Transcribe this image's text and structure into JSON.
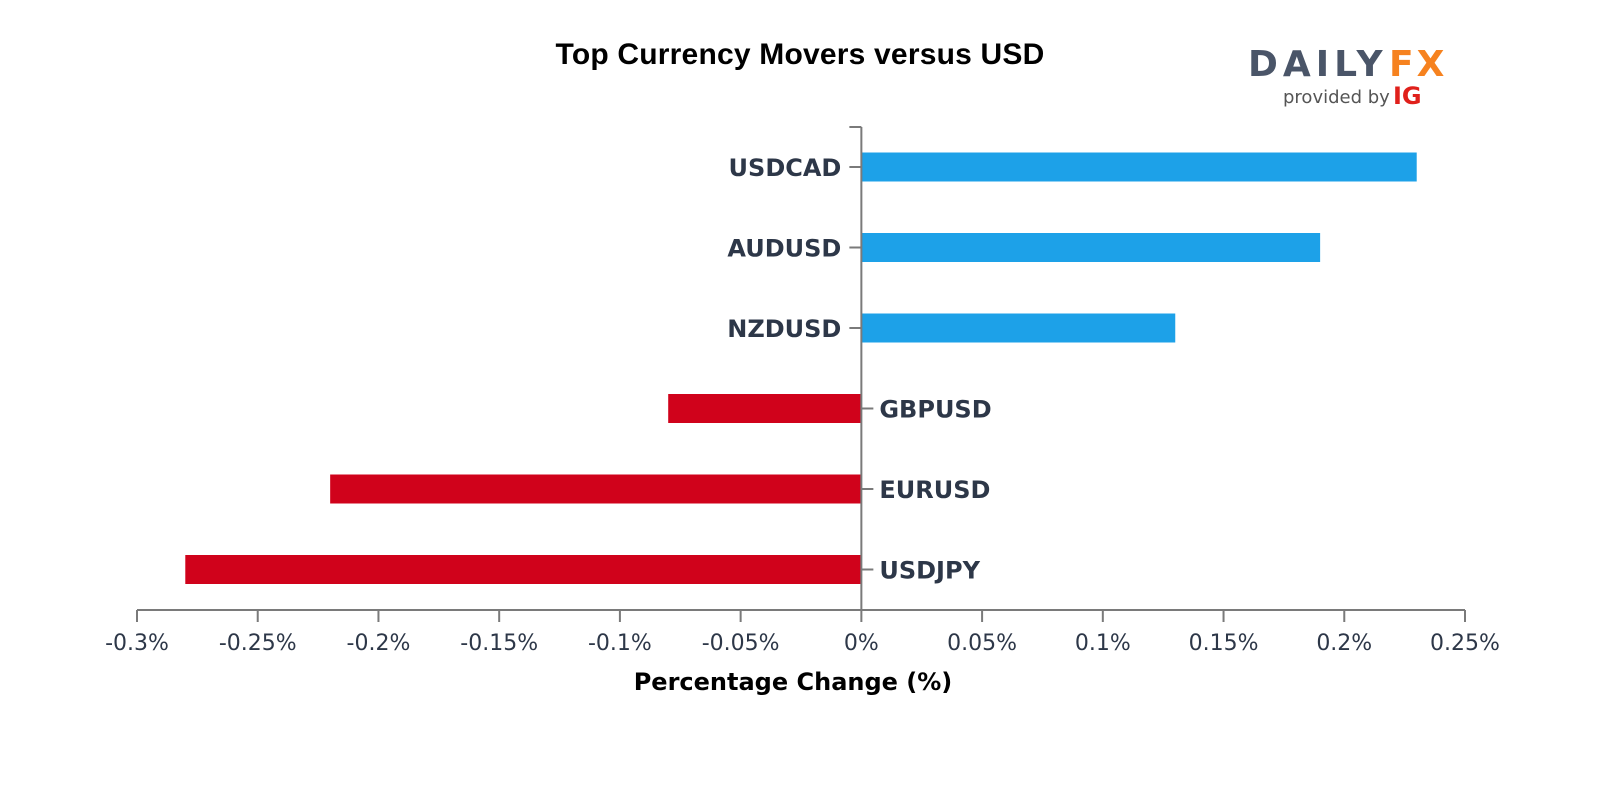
{
  "chart_data": {
    "type": "bar",
    "orientation": "horizontal",
    "title": "Top Currency Movers versus USD",
    "xlabel": "Percentage Change (%)",
    "ylabel": "",
    "xlim": [
      -0.3,
      0.25
    ],
    "x_ticks": [
      -0.3,
      -0.25,
      -0.2,
      -0.15,
      -0.1,
      -0.05,
      0,
      0.05,
      0.1,
      0.15,
      0.2,
      0.25
    ],
    "x_tick_labels": [
      "-0.3%",
      "-0.25%",
      "-0.2%",
      "-0.15%",
      "-0.1%",
      "-0.05%",
      "0%",
      "0.05%",
      "0.1%",
      "0.15%",
      "0.2%",
      "0.25%"
    ],
    "categories": [
      "USDCAD",
      "AUDUSD",
      "NZDUSD",
      "GBPUSD",
      "EURUSD",
      "USDJPY"
    ],
    "values": [
      0.23,
      0.19,
      0.13,
      -0.08,
      -0.22,
      -0.28
    ],
    "grid": false,
    "legend": "none",
    "colors": {
      "positive": "#1da1e8",
      "negative": "#d0021b",
      "axis": "#7a7a7a",
      "label": "#2d3748"
    }
  },
  "logo": {
    "brand_left": "DAILY",
    "brand_right": "FX",
    "provided_by": "provided by",
    "provider": "IG",
    "colors": {
      "brand_left": "#4a5568",
      "brand_right": "#f6821f",
      "provider": "#e0201b",
      "provided_by": "#555555"
    }
  }
}
